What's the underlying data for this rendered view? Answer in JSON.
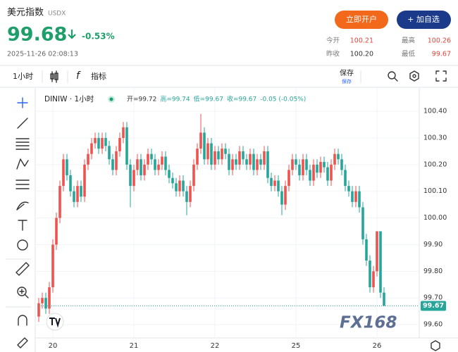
{
  "header": {
    "title": "美元指数",
    "code": "USDX",
    "price": "99.68",
    "change": "-0.53%",
    "timestamp": "2025-11-26 02:08:13",
    "buttons": [
      "立即开户",
      "+ 加自选"
    ],
    "stats": [
      {
        "label": "今开",
        "value": "100.21"
      },
      {
        "label": "最高",
        "value": "100.26"
      },
      {
        "label": "昨收",
        "value": "100.20"
      },
      {
        "label": "最低",
        "value": "99.67"
      }
    ]
  },
  "toolbar": {
    "interval": "1小时",
    "indicators": "指标",
    "save": "保存",
    "save_sub": "保存"
  },
  "chart_data": {
    "type": "candlestick",
    "symbol": "DINIW · 1小时",
    "ohlc_text": [
      "开=99.72",
      "高=99.74",
      "低=99.67",
      "收=99.67",
      "-0.05 (-0.05%)"
    ],
    "up_color": "#ef5350",
    "down_color": "#26a69a",
    "grid": true,
    "watermark": "FX168",
    "open": [
      99.63,
      99.68,
      99.7,
      99.66,
      99.74,
      99.9,
      100.0,
      100.12,
      100.22,
      100.16,
      100.1,
      100.06,
      100.12,
      100.08,
      100.2,
      100.24,
      100.28,
      100.3,
      100.26,
      100.3,
      100.27,
      100.22,
      100.18,
      100.25,
      100.3,
      100.34,
      100.2,
      100.12,
      100.18,
      100.22,
      100.16,
      100.2,
      100.24,
      100.22,
      100.18,
      100.2,
      100.23,
      100.18,
      100.15,
      100.13,
      100.1,
      100.14,
      100.1,
      100.06,
      100.12,
      100.2,
      100.26,
      100.32,
      100.22,
      100.28,
      100.2,
      100.25,
      100.22,
      100.26,
      100.24,
      100.18,
      100.22,
      100.2,
      100.25,
      100.22,
      100.2,
      100.24,
      100.18,
      100.22,
      100.2,
      100.25,
      100.15,
      100.12,
      100.14,
      100.1,
      100.05,
      100.12,
      100.18,
      100.22,
      100.2,
      100.16,
      100.22,
      100.18,
      100.14,
      100.2,
      100.17,
      100.21,
      100.19,
      100.14,
      100.2,
      100.24,
      100.22,
      100.18,
      100.12,
      100.1,
      100.06,
      100.1,
      100.04,
      99.92,
      99.84,
      99.74,
      99.8,
      99.95,
      99.72
    ],
    "high": [
      99.7,
      99.72,
      99.72,
      99.76,
      99.92,
      100.02,
      100.14,
      100.24,
      100.24,
      100.18,
      100.12,
      100.14,
      100.14,
      100.22,
      100.26,
      100.3,
      100.32,
      100.32,
      100.32,
      100.32,
      100.29,
      100.24,
      100.27,
      100.32,
      100.36,
      100.36,
      100.22,
      100.2,
      100.24,
      100.24,
      100.22,
      100.26,
      100.26,
      100.24,
      100.22,
      100.25,
      100.25,
      100.2,
      100.17,
      100.15,
      100.16,
      100.16,
      100.12,
      100.14,
      100.22,
      100.28,
      100.39,
      100.34,
      100.3,
      100.3,
      100.27,
      100.27,
      100.28,
      100.28,
      100.26,
      100.24,
      100.24,
      100.27,
      100.27,
      100.24,
      100.26,
      100.26,
      100.24,
      100.24,
      100.27,
      100.27,
      100.17,
      100.16,
      100.16,
      100.12,
      100.14,
      100.2,
      100.24,
      100.24,
      100.22,
      100.24,
      100.24,
      100.2,
      100.22,
      100.22,
      100.23,
      100.23,
      100.21,
      100.22,
      100.26,
      100.26,
      100.24,
      100.2,
      100.14,
      100.12,
      100.12,
      100.12,
      100.06,
      99.94,
      99.86,
      99.82,
      99.95,
      99.95,
      99.74
    ],
    "low": [
      99.61,
      99.66,
      99.64,
      99.64,
      99.72,
      99.88,
      99.98,
      100.1,
      100.14,
      100.08,
      100.04,
      100.04,
      100.06,
      100.06,
      100.18,
      100.22,
      100.26,
      100.24,
      100.24,
      100.25,
      100.2,
      100.16,
      100.16,
      100.23,
      100.28,
      100.18,
      100.04,
      100.1,
      100.16,
      100.14,
      100.14,
      100.18,
      100.2,
      100.16,
      100.16,
      100.18,
      100.16,
      100.13,
      100.11,
      100.08,
      100.08,
      100.08,
      100.01,
      100.04,
      100.1,
      100.18,
      100.24,
      100.2,
      100.2,
      100.18,
      100.18,
      100.2,
      100.2,
      100.22,
      100.16,
      100.16,
      100.18,
      100.18,
      100.2,
      100.18,
      100.18,
      100.16,
      100.16,
      100.18,
      100.18,
      100.13,
      100.1,
      100.1,
      100.08,
      100.01,
      100.03,
      100.1,
      100.16,
      100.18,
      100.14,
      100.14,
      100.16,
      100.12,
      100.12,
      100.15,
      100.15,
      100.17,
      100.12,
      100.12,
      100.18,
      100.2,
      100.16,
      100.1,
      100.08,
      100.04,
      100.04,
      100.02,
      99.9,
      99.82,
      99.72,
      99.72,
      99.78,
      99.7,
      99.67
    ],
    "close": [
      99.68,
      99.7,
      99.66,
      99.74,
      99.9,
      100.0,
      100.12,
      100.22,
      100.16,
      100.1,
      100.06,
      100.12,
      100.08,
      100.2,
      100.24,
      100.28,
      100.3,
      100.26,
      100.3,
      100.27,
      100.22,
      100.18,
      100.25,
      100.3,
      100.34,
      100.2,
      100.12,
      100.18,
      100.22,
      100.16,
      100.2,
      100.24,
      100.22,
      100.18,
      100.2,
      100.23,
      100.18,
      100.15,
      100.13,
      100.1,
      100.14,
      100.1,
      100.06,
      100.12,
      100.2,
      100.26,
      100.32,
      100.22,
      100.28,
      100.2,
      100.25,
      100.22,
      100.26,
      100.24,
      100.18,
      100.22,
      100.2,
      100.25,
      100.22,
      100.2,
      100.24,
      100.18,
      100.22,
      100.2,
      100.25,
      100.15,
      100.12,
      100.14,
      100.1,
      100.05,
      100.12,
      100.18,
      100.22,
      100.2,
      100.16,
      100.22,
      100.18,
      100.14,
      100.2,
      100.17,
      100.21,
      100.19,
      100.14,
      100.2,
      100.24,
      100.22,
      100.18,
      100.12,
      100.1,
      100.06,
      100.1,
      100.04,
      99.92,
      99.84,
      99.74,
      99.8,
      99.95,
      99.72,
      99.67
    ],
    "last_price": 99.67,
    "ylim": [
      99.55,
      100.49
    ],
    "yticks": [
      {
        "value": 99.6,
        "label": "99.60"
      },
      {
        "value": 99.7,
        "label": "99.70"
      },
      {
        "value": 99.8,
        "label": "99.80"
      },
      {
        "value": 99.9,
        "label": "99.90"
      },
      {
        "value": 100,
        "label": "100.00"
      },
      {
        "value": 100.1,
        "label": "100.10"
      },
      {
        "value": 100.2,
        "label": "100.20"
      },
      {
        "value": 100.3,
        "label": "100.30"
      },
      {
        "value": 100.4,
        "label": "100.40"
      }
    ],
    "xlim": [
      0,
      108
    ],
    "xticks": [
      {
        "value": 4,
        "label": "20"
      },
      {
        "value": 27,
        "label": "21"
      },
      {
        "value": 50,
        "label": "22"
      },
      {
        "value": 73,
        "label": "25"
      },
      {
        "value": 96,
        "label": "26"
      }
    ]
  }
}
